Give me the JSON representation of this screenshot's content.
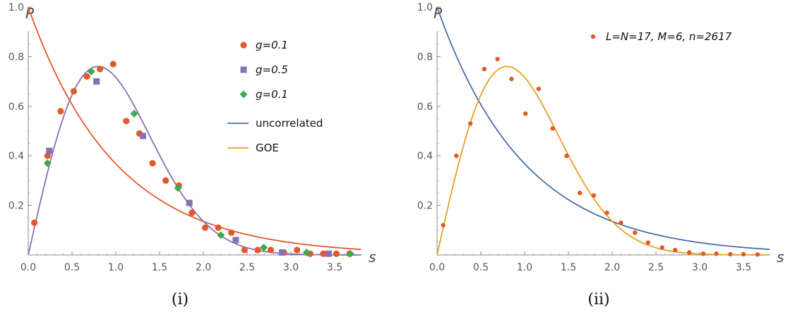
{
  "chart_data": [
    {
      "type": "scatter",
      "panel_label": "(i)",
      "xlabel": "s",
      "ylabel": "P",
      "xlim": [
        0,
        3.8
      ],
      "ylim": [
        0,
        1.05
      ],
      "xticks": [
        "0.0",
        "0.5",
        "1.0",
        "1.5",
        "2.0",
        "2.5",
        "3.0",
        "3.5"
      ],
      "yticks": [
        "0.2",
        "0.4",
        "0.6",
        "0.8",
        "1.0"
      ],
      "legend_position": "top-right",
      "colors": {
        "points_1": "#e05a2b",
        "points_2": "#8a6fb5",
        "points_3": "#3daa4f",
        "uncorrelated": "#4a6fa5",
        "goe": "#e8a020"
      },
      "series": [
        {
          "name": "g=0.1",
          "marker": "circle",
          "color": "#e05a2b",
          "x": [
            0.07,
            0.22,
            0.37,
            0.52,
            0.67,
            0.82,
            0.97,
            1.12,
            1.27,
            1.42,
            1.57,
            1.72,
            1.87,
            2.02,
            2.17,
            2.32,
            2.47,
            2.62,
            2.77,
            2.92,
            3.07,
            3.22,
            3.37,
            3.52,
            3.67
          ],
          "y": [
            0.13,
            0.4,
            0.58,
            0.66,
            0.72,
            0.75,
            0.77,
            0.54,
            0.49,
            0.37,
            0.3,
            0.28,
            0.17,
            0.11,
            0.11,
            0.09,
            0.02,
            0.02,
            0.02,
            0.01,
            0.02,
            0.005,
            0.005,
            0.005,
            0.005
          ]
        },
        {
          "name": "g=0.5",
          "marker": "square",
          "color": "#8a6fb5",
          "x": [
            0.24,
            0.78,
            1.31,
            1.84,
            2.37,
            2.9,
            3.43
          ],
          "y": [
            0.42,
            0.7,
            0.48,
            0.21,
            0.06,
            0.01,
            0.005
          ]
        },
        {
          "name": "g=0.1",
          "marker": "diamond",
          "color": "#3daa4f",
          "x": [
            0.22,
            0.72,
            1.21,
            1.71,
            2.2,
            2.69,
            3.18,
            3.68
          ],
          "y": [
            0.37,
            0.74,
            0.57,
            0.27,
            0.08,
            0.03,
            0.01,
            0.005
          ]
        },
        {
          "name": "uncorrelated",
          "type": "line",
          "formula": "exp(-s)",
          "color": "#4a6fa5"
        },
        {
          "name": "GOE",
          "type": "line",
          "formula": "(pi/2) s exp(-pi s^2 / 4)",
          "color": "#e8a020"
        }
      ]
    },
    {
      "type": "scatter",
      "panel_label": "(ii)",
      "xlabel": "s",
      "ylabel": "P",
      "xlim": [
        0,
        3.8
      ],
      "ylim": [
        0,
        1.05
      ],
      "xticks": [
        "0.0",
        "0.5",
        "1.0",
        "1.5",
        "2.0",
        "2.5",
        "3.0",
        "3.5"
      ],
      "yticks": [
        "0.2",
        "0.4",
        "0.6",
        "0.8",
        "1.0"
      ],
      "legend_position": "top-right",
      "series": [
        {
          "name": "L=N=17, M=6, n=2617",
          "marker": "small-circle",
          "color": "#e05a2b",
          "x": [
            0.07,
            0.22,
            0.38,
            0.54,
            0.69,
            0.85,
            1.01,
            1.16,
            1.32,
            1.48,
            1.63,
            1.79,
            1.94,
            2.1,
            2.26,
            2.41,
            2.57,
            2.72,
            2.88,
            3.04,
            3.19,
            3.35,
            3.5,
            3.66
          ],
          "y": [
            0.12,
            0.4,
            0.53,
            0.75,
            0.79,
            0.71,
            0.57,
            0.67,
            0.51,
            0.4,
            0.25,
            0.24,
            0.17,
            0.13,
            0.09,
            0.05,
            0.03,
            0.02,
            0.01,
            0.005,
            0.005,
            0.003,
            0.003,
            0.002
          ]
        },
        {
          "type": "line",
          "formula": "exp(-s)",
          "color": "#4a6fa5"
        },
        {
          "type": "line",
          "formula": "(pi/2) s exp(-pi s^2 / 4)",
          "color": "#e8a020"
        }
      ]
    }
  ]
}
